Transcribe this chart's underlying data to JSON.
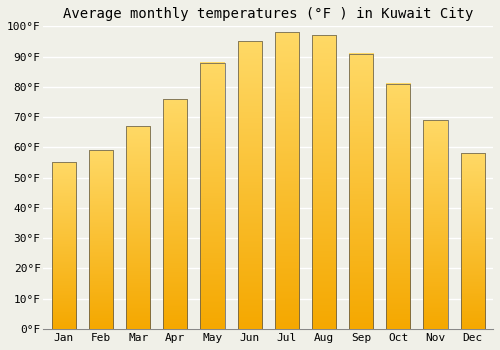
{
  "title": "Average monthly temperatures (°F ) in Kuwait City",
  "months": [
    "Jan",
    "Feb",
    "Mar",
    "Apr",
    "May",
    "Jun",
    "Jul",
    "Aug",
    "Sep",
    "Oct",
    "Nov",
    "Dec"
  ],
  "values": [
    55,
    59,
    67,
    76,
    88,
    95,
    98,
    97,
    91,
    81,
    69,
    58
  ],
  "bar_color_dark": "#F5A800",
  "bar_color_light": "#FFD966",
  "bar_edge_color": "#555555",
  "ylim": [
    0,
    100
  ],
  "yticks": [
    0,
    10,
    20,
    30,
    40,
    50,
    60,
    70,
    80,
    90,
    100
  ],
  "ytick_labels": [
    "0°F",
    "10°F",
    "20°F",
    "30°F",
    "40°F",
    "50°F",
    "60°F",
    "70°F",
    "80°F",
    "90°F",
    "100°F"
  ],
  "background_color": "#f0f0e8",
  "grid_color": "#ffffff",
  "title_fontsize": 10,
  "tick_fontsize": 8
}
